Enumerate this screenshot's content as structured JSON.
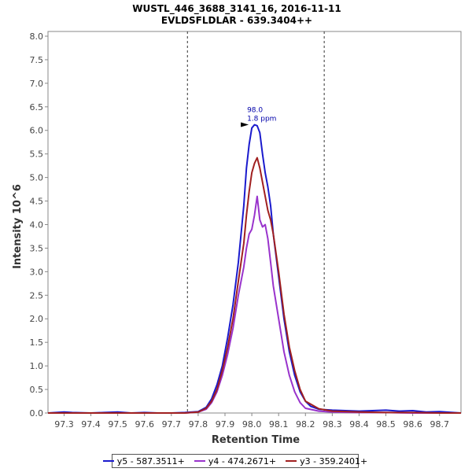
{
  "chart_data": {
    "type": "line",
    "title": "WUSTL_446_3688_3141_16, 2016-11-11",
    "subtitle": "EVLDSFLDLAR - 639.3404++",
    "xlabel": "Retention Time",
    "ylabel": "Intensity 10^6",
    "xlim": [
      97.24,
      98.78
    ],
    "ylim": [
      0.0,
      8.1
    ],
    "xticks": [
      97.3,
      97.4,
      97.5,
      97.6,
      97.7,
      97.8,
      97.9,
      98.0,
      98.1,
      98.2,
      98.3,
      98.4,
      98.5,
      98.6,
      98.7
    ],
    "yticks": [
      0.0,
      0.5,
      1.0,
      1.5,
      2.0,
      2.5,
      3.0,
      3.5,
      4.0,
      4.5,
      5.0,
      5.5,
      6.0,
      6.5,
      7.0,
      7.5,
      8.0
    ],
    "integration_bounds": [
      97.76,
      98.27
    ],
    "peak_annotation": {
      "x": 98.0,
      "y": 6.12,
      "rt_label": "98.0",
      "ppm_label": "1.8 ppm",
      "color": "#0000aa"
    },
    "series": [
      {
        "name": "y5 - 587.3511+",
        "color": "#1a1acd",
        "x": [
          97.24,
          97.3,
          97.33,
          97.4,
          97.45,
          97.5,
          97.55,
          97.6,
          97.65,
          97.7,
          97.75,
          97.8,
          97.83,
          97.85,
          97.87,
          97.89,
          97.91,
          97.93,
          97.95,
          97.97,
          97.98,
          97.99,
          98.0,
          98.01,
          98.02,
          98.03,
          98.04,
          98.05,
          98.06,
          98.07,
          98.08,
          98.1,
          98.12,
          98.14,
          98.16,
          98.18,
          98.2,
          98.22,
          98.25,
          98.3,
          98.35,
          98.4,
          98.45,
          98.5,
          98.55,
          98.6,
          98.65,
          98.7,
          98.75,
          98.78
        ],
        "y": [
          0.0,
          0.02,
          0.01,
          0.0,
          0.01,
          0.02,
          0.0,
          0.01,
          0.0,
          0.0,
          0.01,
          0.03,
          0.12,
          0.3,
          0.6,
          1.0,
          1.6,
          2.3,
          3.2,
          4.4,
          5.2,
          5.7,
          6.05,
          6.12,
          6.1,
          5.95,
          5.5,
          5.1,
          4.8,
          4.4,
          3.8,
          2.9,
          2.0,
          1.3,
          0.8,
          0.45,
          0.25,
          0.14,
          0.08,
          0.06,
          0.05,
          0.04,
          0.05,
          0.06,
          0.04,
          0.05,
          0.02,
          0.03,
          0.01,
          0.0
        ]
      },
      {
        "name": "y4 - 474.2671+",
        "color": "#9933cc",
        "x": [
          97.24,
          97.5,
          97.75,
          97.8,
          97.83,
          97.85,
          97.87,
          97.89,
          97.91,
          97.93,
          97.95,
          97.97,
          97.98,
          97.99,
          98.0,
          98.01,
          98.02,
          98.03,
          98.04,
          98.05,
          98.06,
          98.07,
          98.08,
          98.1,
          98.12,
          98.14,
          98.16,
          98.18,
          98.2,
          98.25,
          98.3,
          98.4,
          98.5,
          98.6,
          98.7,
          98.78
        ],
        "y": [
          0.0,
          0.0,
          0.0,
          0.02,
          0.08,
          0.22,
          0.45,
          0.8,
          1.25,
          1.8,
          2.5,
          3.1,
          3.5,
          3.8,
          3.9,
          4.2,
          4.6,
          4.1,
          3.95,
          4.0,
          3.7,
          3.2,
          2.7,
          2.0,
          1.3,
          0.8,
          0.45,
          0.22,
          0.1,
          0.04,
          0.02,
          0.01,
          0.01,
          0.0,
          0.0,
          0.0
        ]
      },
      {
        "name": "y3 - 359.2401+",
        "color": "#a02020",
        "x": [
          97.24,
          97.5,
          97.75,
          97.8,
          97.83,
          97.85,
          97.87,
          97.89,
          97.91,
          97.93,
          97.95,
          97.97,
          97.98,
          97.99,
          98.0,
          98.01,
          98.02,
          98.03,
          98.04,
          98.05,
          98.06,
          98.07,
          98.08,
          98.1,
          98.12,
          98.14,
          98.16,
          98.18,
          98.2,
          98.25,
          98.3,
          98.4,
          98.5,
          98.6,
          98.7,
          98.78
        ],
        "y": [
          0.0,
          0.0,
          0.0,
          0.02,
          0.1,
          0.25,
          0.5,
          0.9,
          1.4,
          2.0,
          2.8,
          3.6,
          4.2,
          4.7,
          5.1,
          5.3,
          5.42,
          5.2,
          4.9,
          4.6,
          4.3,
          4.1,
          3.8,
          3.0,
          2.1,
          1.4,
          0.9,
          0.5,
          0.25,
          0.09,
          0.04,
          0.02,
          0.01,
          0.01,
          0.0,
          0.0
        ]
      }
    ]
  }
}
